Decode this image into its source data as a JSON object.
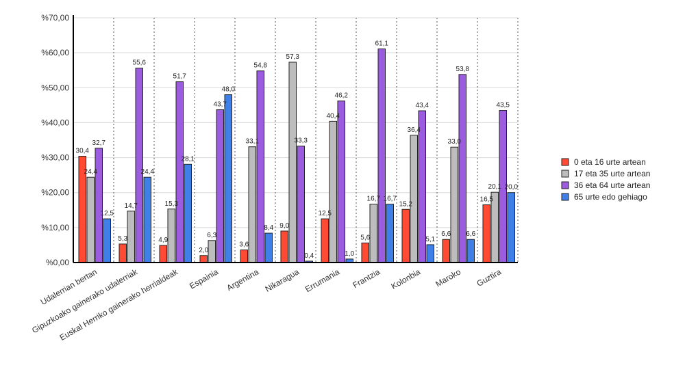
{
  "chart_data": {
    "type": "bar",
    "title": "",
    "xlabel": "",
    "ylabel": "",
    "ylim": [
      0,
      70
    ],
    "yticks": [
      "%0,00",
      "%10,00",
      "%20,00",
      "%30,00",
      "%40,00",
      "%50,00",
      "%60,00",
      "%70,00"
    ],
    "grid": "horizontal solid, vertical dotted",
    "legend_position": "right",
    "categories": [
      "Udalerrian bertan",
      "Gipuzkoako gainerako udalerriak",
      "Euskal Herriko gainerako herrialdeak",
      "Espainia",
      "Argentina",
      "Nikaragua",
      "Errumania",
      "Frantzia",
      "Kolonbia",
      "Maroko",
      "Guztira"
    ],
    "series": [
      {
        "name": "0 eta 16 urte artean",
        "color": "#ff4b33",
        "values": [
          30.4,
          5.3,
          4.9,
          2.0,
          3.6,
          9.0,
          12.5,
          5.6,
          15.2,
          6.6,
          16.5
        ],
        "labels": [
          "30,4",
          "5,3",
          "4,9",
          "2,0",
          "3,6",
          "9,0",
          "12,5",
          "5,6",
          "15,2",
          "6,6",
          "16,5"
        ]
      },
      {
        "name": "17 eta 35 urte artean",
        "color": "#bdbdbd",
        "values": [
          24.4,
          14.7,
          15.3,
          6.3,
          33.1,
          57.3,
          40.4,
          16.7,
          36.4,
          33.0,
          20.1
        ],
        "labels": [
          "24,4",
          "14,7",
          "15,3",
          "6,3",
          "33,1",
          "57,3",
          "40,4",
          "16,7",
          "36,4",
          "33,0",
          "20,1"
        ]
      },
      {
        "name": "36 eta 64 urte artean",
        "color": "#9b5ce0",
        "values": [
          32.7,
          55.6,
          51.7,
          43.7,
          54.8,
          33.3,
          46.2,
          61.1,
          43.4,
          53.8,
          43.5
        ],
        "labels": [
          "32,7",
          "55,6",
          "51,7",
          "43,7",
          "54,8",
          "33,3",
          "46,2",
          "61,1",
          "43,4",
          "53,8",
          "43,5"
        ]
      },
      {
        "name": "65 urte edo gehiago",
        "color": "#3f7fe8",
        "values": [
          12.5,
          24.4,
          28.1,
          48.0,
          8.4,
          0.4,
          1.0,
          16.7,
          5.1,
          6.6,
          20.0
        ],
        "labels": [
          "12,5",
          "24,4",
          "28,1",
          "48,0",
          "8,4",
          "0,4",
          "1,0",
          "16,7",
          "5,1",
          "6,6",
          "20,0"
        ]
      }
    ]
  }
}
